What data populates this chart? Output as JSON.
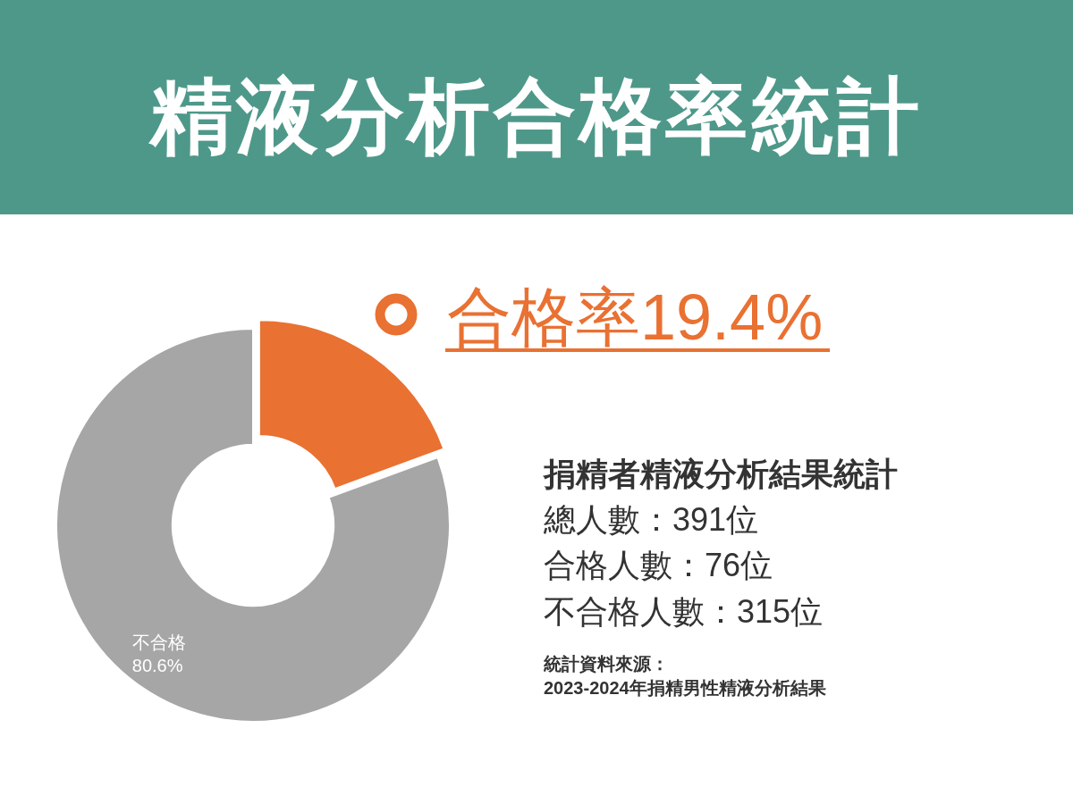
{
  "chart_data": {
    "type": "donut",
    "title": "精液分析合格率統計",
    "subtitle": "合格率19.4%",
    "categories": [
      null,
      "不合格"
    ],
    "values": [
      19.4,
      80.6
    ],
    "colors": [
      "#e97132",
      "#a6a6a6"
    ],
    "value_labels": [
      null,
      "80.6%"
    ],
    "annotations": [
      "捐精者精液分析結果統計",
      "總人數：391位",
      "合格人數：76位",
      "不合格人數：315位",
      "統計資料來源：",
      "2023-2024年捐精男性精液分析結果"
    ]
  }
}
